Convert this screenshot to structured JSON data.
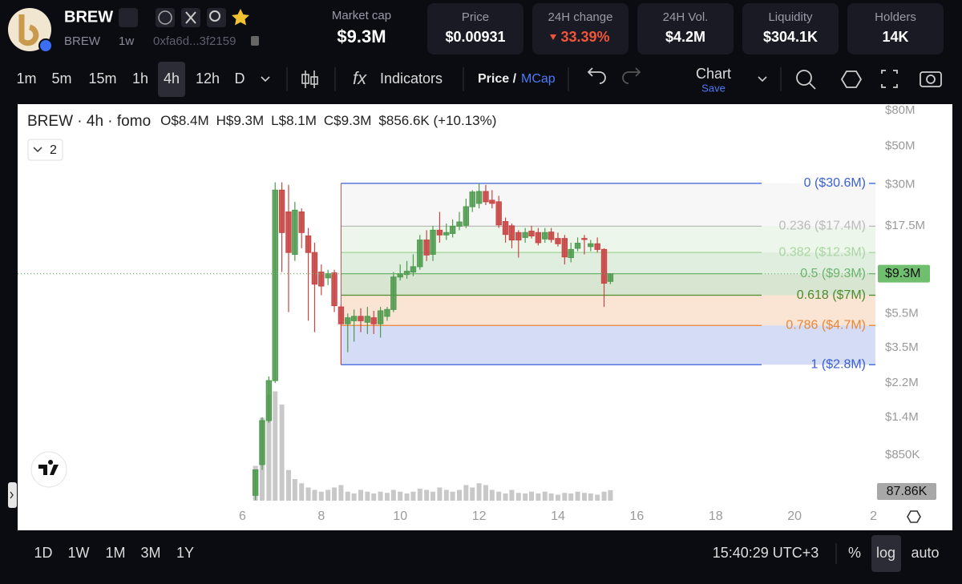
{
  "header": {
    "name": "BREW",
    "symbol": "BREW",
    "age": "1w",
    "address": "0xfa6d...3f2159"
  },
  "market_cap": {
    "label": "Market cap",
    "value": "$9.3M"
  },
  "stats": [
    {
      "label": "Price",
      "value": "$0.00931"
    },
    {
      "label": "24H change",
      "value": "33.39%"
    },
    {
      "label": "24H Vol.",
      "value": "$4.2M"
    },
    {
      "label": "Liquidity",
      "value": "$304.1K"
    },
    {
      "label": "Holders",
      "value": "14K"
    }
  ],
  "toolbar": {
    "intervals": [
      "1m",
      "5m",
      "15m",
      "1h",
      "4h",
      "12h",
      "D"
    ],
    "selected_interval": 4,
    "indicators": "Indicators",
    "price": "Price /",
    "mcap": "MCap",
    "chart": "Chart",
    "save": "Save"
  },
  "chart_data": {
    "type": "candlestick",
    "title": "BREW · 4h · fomo",
    "ohlc": [
      {
        "key": "O",
        "value": "$8.4M"
      },
      {
        "key": "H",
        "value": "$9.3M"
      },
      {
        "key": "L",
        "value": "$8.1M"
      },
      {
        "key": "C",
        "value": "$9.3M"
      }
    ],
    "change": "$856.6K (+10.13%)",
    "indicator_count": "2",
    "x": [
      6.33,
      6.5,
      6.67,
      6.83,
      7,
      7.17,
      7.33,
      7.5,
      7.67,
      7.83,
      8,
      8.17,
      8.33,
      8.5,
      8.67,
      8.83,
      9,
      9.17,
      9.33,
      9.5,
      9.67,
      9.83,
      10,
      10.17,
      10.33,
      10.5,
      10.67,
      10.83,
      11,
      11.17,
      11.33,
      11.5,
      11.67,
      11.83,
      12,
      12.17,
      12.33,
      12.5,
      12.67,
      12.83,
      13,
      13.17,
      13.33,
      13.5,
      13.67,
      13.83,
      14,
      14.17,
      14.33,
      14.5,
      14.67,
      14.83,
      15,
      15.17,
      15.33
    ],
    "open": [
      500000,
      750000,
      1340000,
      2270000,
      28000000,
      21000000,
      12000000,
      21000000,
      15300000,
      12300000,
      9500000,
      8800000,
      9400000,
      6000000,
      4800000,
      5000000,
      5300000,
      4900000,
      5200000,
      4800000,
      5300000,
      5800000,
      8900000,
      9200000,
      9500000,
      10200000,
      14500000,
      12000000,
      16500000,
      15500000,
      15800000,
      17400000,
      17600000,
      22500000,
      23500000,
      27500000,
      24500000,
      24000000,
      18500000,
      17500000,
      16000000,
      15000000,
      16300000,
      16000000,
      14700000,
      16100000,
      14800000,
      14800000,
      11500000,
      13000000,
      14800000,
      13300000,
      13800000,
      12800000,
      8400000
    ],
    "high": [
      700000,
      1400000,
      2400000,
      31000000,
      31000000,
      30000000,
      24000000,
      22000000,
      17000000,
      14000000,
      10500000,
      9800000,
      9800000,
      6200000,
      5500000,
      5800000,
      5900000,
      6000000,
      5700000,
      6000000,
      6000000,
      9500000,
      10500000,
      11000000,
      12000000,
      15500000,
      16500000,
      17500000,
      21000000,
      18000000,
      19000000,
      21000000,
      25000000,
      28000000,
      30600000,
      30000000,
      28000000,
      26000000,
      19500000,
      18000000,
      16500000,
      17000000,
      17500000,
      17000000,
      17000000,
      17000000,
      16000000,
      15500000,
      14000000,
      15000000,
      15500000,
      14500000,
      15000000,
      13000000,
      9300000
    ],
    "low": [
      470000,
      700000,
      1300000,
      2200000,
      9500000,
      5600000,
      11000000,
      13000000,
      5000000,
      4300000,
      7000000,
      8000000,
      5600000,
      2800000,
      3300000,
      3800000,
      4300000,
      4200000,
      4200000,
      4000000,
      5000000,
      5600000,
      8500000,
      8700000,
      9000000,
      9800000,
      11000000,
      11000000,
      14000000,
      14500000,
      15000000,
      16500000,
      17000000,
      21000000,
      22000000,
      23000000,
      22000000,
      17000000,
      14000000,
      13000000,
      11500000,
      14000000,
      14800000,
      13500000,
      14000000,
      14000000,
      13300000,
      10500000,
      10800000,
      12500000,
      12000000,
      12500000,
      12300000,
      6000000,
      8100000
    ],
    "close": [
      700000,
      1340000,
      2270000,
      28000000,
      16000000,
      12300000,
      21500000,
      16000000,
      12300000,
      8100000,
      7900000,
      9300000,
      6100000,
      4800000,
      5200000,
      5300000,
      5000000,
      5300000,
      4800000,
      5700000,
      5800000,
      8900000,
      9300000,
      9600000,
      10200000,
      14500000,
      11900000,
      16500000,
      15500000,
      16000000,
      17400000,
      18400000,
      22500000,
      27300000,
      27500000,
      24000000,
      23500000,
      17700000,
      15600000,
      14500000,
      14500000,
      16000000,
      15300000,
      14000000,
      16000000,
      14600000,
      13800000,
      11600000,
      12800000,
      13900000,
      14600000,
      13800000,
      12800000,
      8200000,
      9300000
    ],
    "volume": [
      290000,
      690000,
      880000,
      910000,
      800000,
      255000,
      180000,
      145000,
      110000,
      90000,
      75000,
      90000,
      110000,
      130000,
      75000,
      60000,
      90000,
      75000,
      60000,
      75000,
      65000,
      90000,
      75000,
      60000,
      75000,
      100000,
      90000,
      75000,
      110000,
      90000,
      75000,
      90000,
      130000,
      110000,
      145000,
      130000,
      90000,
      75000,
      60000,
      90000,
      65000,
      60000,
      75000,
      60000,
      75000,
      60000,
      50000,
      65000,
      60000,
      75000,
      65000,
      60000,
      50000,
      75000,
      87860
    ],
    "up_color": "#4e9a4e",
    "down_color": "#c84646",
    "volume_color": "#c8c8c8",
    "log_scale": true,
    "ylim": [
      466000,
      87000000
    ],
    "volume_ylim": [
      0,
      1000000
    ],
    "yticks": [
      {
        "value": 80000000,
        "label": "$80M"
      },
      {
        "value": 50000000,
        "label": "$50M"
      },
      {
        "value": 30000000,
        "label": "$30M"
      },
      {
        "value": 17500000,
        "label": "$17.5M"
      },
      {
        "value": 5500000,
        "label": "$5.5M"
      },
      {
        "value": 3500000,
        "label": "$3.5M"
      },
      {
        "value": 2200000,
        "label": "$2.2M"
      },
      {
        "value": 1400000,
        "label": "$1.4M"
      },
      {
        "value": 850000,
        "label": "$850K"
      }
    ],
    "xlim": [
      0.3,
      22.05
    ],
    "xticks": [
      6,
      8,
      10,
      12,
      14,
      16,
      18,
      20,
      {
        "value": 22,
        "label": "2"
      }
    ],
    "last_price": {
      "value": 9300000,
      "label": "$9.3M",
      "color": "#6fbf6f"
    },
    "last_volume": {
      "value": 87860,
      "label": "87.86K"
    },
    "fib": [
      {
        "value": 30600000,
        "label": "0 ($30.6M)",
        "color": "#3a5fd8"
      },
      {
        "value": 17400000,
        "label": "0.236 ($17.4M)",
        "color": "#bbbbbb"
      },
      {
        "value": 12300000,
        "label": "0.382 ($12.3M)",
        "color": "#a9d6a0"
      },
      {
        "value": 9300000,
        "label": "0.5 ($9.3M)",
        "color": "#6db36d"
      },
      {
        "value": 7000000,
        "label": "0.618 ($7M)",
        "color": "#4f8a2f"
      },
      {
        "value": 4700000,
        "label": "0.786 ($4.7M)",
        "color": "#e8863a"
      },
      {
        "value": 2800000,
        "label": "1 ($2.8M)",
        "color": "#3a5fd8"
      }
    ]
  },
  "footer": {
    "ranges": [
      "1D",
      "1W",
      "1M",
      "3M",
      "1Y"
    ],
    "time": "15:40:29 UTC+3",
    "percent": "%",
    "log": "log",
    "auto": "auto"
  }
}
